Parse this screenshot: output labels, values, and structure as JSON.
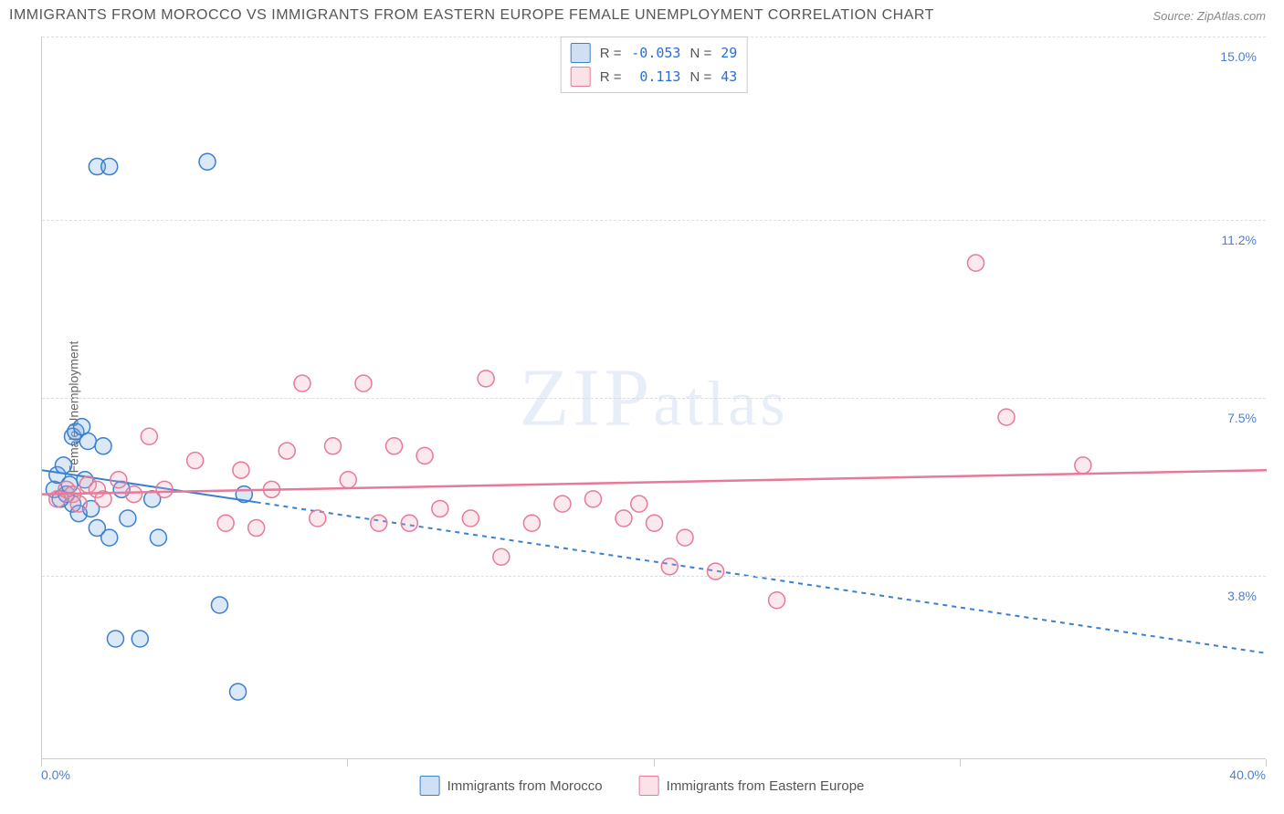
{
  "title": "IMMIGRANTS FROM MOROCCO VS IMMIGRANTS FROM EASTERN EUROPE FEMALE UNEMPLOYMENT CORRELATION CHART",
  "source": "Source: ZipAtlas.com",
  "y_axis_label": "Female Unemployment",
  "watermark": "ZIPatlas",
  "chart": {
    "type": "scatter",
    "xlim": [
      0.0,
      40.0
    ],
    "ylim": [
      0.0,
      15.0
    ],
    "x_ticks": [
      0.0,
      10.0,
      20.0,
      30.0,
      40.0
    ],
    "x_tick_labels_shown": {
      "0.0": "0.0%",
      "40.0": "40.0%"
    },
    "y_ticks": [
      3.8,
      7.5,
      11.2,
      15.0
    ],
    "y_tick_format": "{v}%",
    "grid_color": "#dddddd",
    "axis_color": "#cccccc",
    "background_color": "#ffffff",
    "tick_label_color": "#4a7fd8",
    "marker_radius": 9,
    "marker_stroke_width": 1.5,
    "marker_fill_opacity": 0.25,
    "series": [
      {
        "id": "morocco",
        "label": "Immigrants from Morocco",
        "color": "#6fa3e0",
        "stroke": "#3a7fd0",
        "R": "-0.053",
        "N": "29",
        "trend": {
          "x0": 0.0,
          "y0": 6.0,
          "x1": 40.0,
          "y1": 2.2,
          "solid_until_x": 7.0,
          "dash": "5,5",
          "width": 2
        },
        "points": [
          [
            0.4,
            5.6
          ],
          [
            0.5,
            5.9
          ],
          [
            0.6,
            5.4
          ],
          [
            0.7,
            6.1
          ],
          [
            0.8,
            5.5
          ],
          [
            0.9,
            5.7
          ],
          [
            1.0,
            6.7
          ],
          [
            1.0,
            5.3
          ],
          [
            1.1,
            6.8
          ],
          [
            1.2,
            5.1
          ],
          [
            1.3,
            6.9
          ],
          [
            1.4,
            5.8
          ],
          [
            1.5,
            6.6
          ],
          [
            1.6,
            5.2
          ],
          [
            1.8,
            4.8
          ],
          [
            2.0,
            6.5
          ],
          [
            2.2,
            4.6
          ],
          [
            2.4,
            2.5
          ],
          [
            2.6,
            5.6
          ],
          [
            2.8,
            5.0
          ],
          [
            3.2,
            2.5
          ],
          [
            3.6,
            5.4
          ],
          [
            3.8,
            4.6
          ],
          [
            1.8,
            12.3
          ],
          [
            2.2,
            12.3
          ],
          [
            5.4,
            12.4
          ],
          [
            5.8,
            3.2
          ],
          [
            6.4,
            1.4
          ],
          [
            6.6,
            5.5
          ]
        ]
      },
      {
        "id": "eastern_europe",
        "label": "Immigrants from Eastern Europe",
        "color": "#f3a8bb",
        "stroke": "#e67a98",
        "R": "0.113",
        "N": "43",
        "trend": {
          "x0": 0.0,
          "y0": 5.5,
          "x1": 40.0,
          "y1": 6.0,
          "solid_until_x": 40.0,
          "dash": "",
          "width": 2.5
        },
        "points": [
          [
            0.5,
            5.4
          ],
          [
            0.8,
            5.6
          ],
          [
            1.0,
            5.5
          ],
          [
            1.2,
            5.3
          ],
          [
            1.5,
            5.7
          ],
          [
            1.8,
            5.6
          ],
          [
            2.0,
            5.4
          ],
          [
            2.5,
            5.8
          ],
          [
            3.0,
            5.5
          ],
          [
            3.5,
            6.7
          ],
          [
            4.0,
            5.6
          ],
          [
            5.0,
            6.2
          ],
          [
            6.0,
            4.9
          ],
          [
            6.5,
            6.0
          ],
          [
            7.0,
            4.8
          ],
          [
            7.5,
            5.6
          ],
          [
            8.0,
            6.4
          ],
          [
            8.5,
            7.8
          ],
          [
            9.0,
            5.0
          ],
          [
            9.5,
            6.5
          ],
          [
            10.0,
            5.8
          ],
          [
            10.5,
            7.8
          ],
          [
            11.0,
            4.9
          ],
          [
            11.5,
            6.5
          ],
          [
            12.0,
            4.9
          ],
          [
            12.5,
            6.3
          ],
          [
            14.0,
            5.0
          ],
          [
            14.5,
            7.9
          ],
          [
            15.0,
            4.2
          ],
          [
            16.0,
            4.9
          ],
          [
            17.0,
            5.3
          ],
          [
            18.0,
            5.4
          ],
          [
            19.0,
            5.0
          ],
          [
            19.5,
            5.3
          ],
          [
            20.0,
            4.9
          ],
          [
            21.0,
            4.6
          ],
          [
            22.0,
            3.9
          ],
          [
            24.0,
            3.3
          ],
          [
            30.5,
            10.3
          ],
          [
            31.5,
            7.1
          ],
          [
            34.0,
            6.1
          ],
          [
            20.5,
            4.0
          ],
          [
            13.0,
            5.2
          ]
        ]
      }
    ]
  },
  "legend_top": {
    "R_label": "R =",
    "N_label": "N ="
  }
}
